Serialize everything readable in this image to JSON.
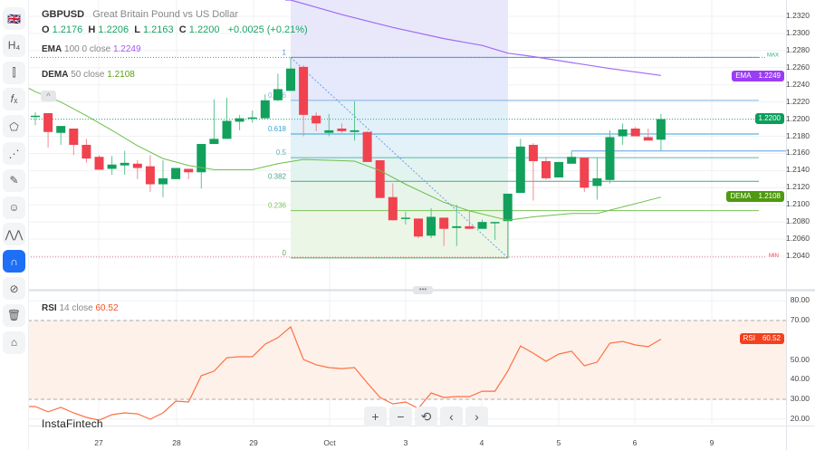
{
  "header": {
    "symbol": "GBPUSD",
    "description": "Great Britain Pound vs US Dollar",
    "ohlc": {
      "o_label": "O",
      "o": "1.2176",
      "h_label": "H",
      "h": "1.2206",
      "l_label": "L",
      "l": "1.2163",
      "c_label": "C",
      "c": "1.2200",
      "change": "+0.0025 (+0.21%)"
    }
  },
  "indicators": {
    "ema": {
      "name": "EMA",
      "params": "100 0 close",
      "value": "1.2249",
      "color": "#a34ff5"
    },
    "dema": {
      "name": "DEMA",
      "params": "50 close",
      "value": "1.2108",
      "color": "#5aa312"
    },
    "rsi": {
      "name": "RSI",
      "params": "14 close",
      "value": "60.52",
      "color": "#f4511e"
    }
  },
  "sidebar": {
    "items": [
      {
        "name": "symbol-flag",
        "glyph": "🇬🇧"
      },
      {
        "name": "timeframe",
        "glyph": "H₄"
      },
      {
        "name": "chart-type",
        "glyph": "⫿"
      },
      {
        "name": "indicators",
        "glyph": "𝑓ₓ"
      },
      {
        "name": "drawing-shapes",
        "glyph": "⬠"
      },
      {
        "name": "fib-tools",
        "glyph": "⋰"
      },
      {
        "name": "brush",
        "glyph": "✎"
      },
      {
        "name": "emoji",
        "glyph": "☺"
      },
      {
        "name": "patterns",
        "glyph": "⋀⋀"
      },
      {
        "name": "magnet",
        "glyph": "∩",
        "active": true
      },
      {
        "name": "hide-drawings",
        "glyph": "⊘"
      },
      {
        "name": "delete-all",
        "glyph": "🗑"
      },
      {
        "name": "screenshot",
        "glyph": "⌂"
      }
    ]
  },
  "price_axis": {
    "ticks": [
      "1.2320",
      "1.2300",
      "1.2280",
      "1.2260",
      "1.2240",
      "1.2220",
      "1.2200",
      "1.2180",
      "1.2160",
      "1.2140",
      "1.2120",
      "1.2100",
      "1.2080",
      "1.2060",
      "1.2040"
    ],
    "tags": {
      "ema_label": "EMA",
      "ema": "1.2249",
      "price": "1.2200",
      "dema_label": "DEMA",
      "dema": "1.2108"
    },
    "colors": {
      "ema": "#9b3df6",
      "price": "#0b9e5a",
      "dema": "#4e9a10"
    }
  },
  "rsi_axis": {
    "ticks": [
      "80.00",
      "70.00",
      "50.00",
      "40.00",
      "30.00",
      "20.00"
    ],
    "tag_label": "RSI",
    "tag": "60.52",
    "color": "#f4401f"
  },
  "time_axis": {
    "labels": [
      "27",
      "28",
      "29",
      "Oct",
      "3",
      "4",
      "5",
      "6",
      "9"
    ]
  },
  "fib": {
    "levels": [
      "1",
      "0.786",
      "0.618",
      "0.5",
      "0.382",
      "0.236",
      "0"
    ],
    "max_label": "MAX",
    "min_label": "MIN",
    "high": 1.2272,
    "low": 1.2038
  },
  "horizontal_line": 1.2163,
  "controls": {
    "zoom_in": "+",
    "zoom_out": "−",
    "reset": "⟲",
    "back": "‹",
    "forward": "›"
  },
  "collapse_glyph": "^",
  "handle_glyph": "•••",
  "logo": "InstaFintech",
  "candles": [
    [
      1.2203,
      1.2208,
      1.2193,
      1.2204
    ],
    [
      1.2207,
      1.2207,
      1.2167,
      1.2185
    ],
    [
      1.2184,
      1.2192,
      1.217,
      1.2192
    ],
    [
      1.2189,
      1.2189,
      1.2158,
      1.217
    ],
    [
      1.217,
      1.2177,
      1.2149,
      1.2154
    ],
    [
      1.2156,
      1.2158,
      1.2141,
      1.2141
    ],
    [
      1.2142,
      1.2157,
      1.2135,
      1.2147
    ],
    [
      1.2146,
      1.2163,
      1.2135,
      1.2149
    ],
    [
      1.2148,
      1.2152,
      1.213,
      1.2143
    ],
    [
      1.2145,
      1.2158,
      1.2115,
      1.2124
    ],
    [
      1.2124,
      1.2152,
      1.2109,
      1.2131
    ],
    [
      1.213,
      1.2143,
      1.213,
      1.2143
    ],
    [
      1.2142,
      1.2142,
      1.213,
      1.2138
    ],
    [
      1.2138,
      1.2171,
      1.2119,
      1.2171
    ],
    [
      1.2171,
      1.2223,
      1.2171,
      1.2177
    ],
    [
      1.2177,
      1.2225,
      1.2177,
      1.2198
    ],
    [
      1.2197,
      1.2205,
      1.2187,
      1.2201
    ],
    [
      1.2201,
      1.221,
      1.2196,
      1.2202
    ],
    [
      1.2201,
      1.2229,
      1.2201,
      1.2222
    ],
    [
      1.2222,
      1.2253,
      1.2221,
      1.2235
    ],
    [
      1.2233,
      1.2272,
      1.2233,
      1.2259
    ],
    [
      1.2261,
      1.2263,
      1.218,
      1.2205
    ],
    [
      1.2204,
      1.2208,
      1.2186,
      1.2195
    ],
    [
      1.2184,
      1.2206,
      1.218,
      1.2187
    ],
    [
      1.2189,
      1.2195,
      1.2184,
      1.2186
    ],
    [
      1.2185,
      1.2221,
      1.2175,
      1.2187
    ],
    [
      1.2185,
      1.2186,
      1.215,
      1.215
    ],
    [
      1.2152,
      1.2152,
      1.2108,
      1.2108
    ],
    [
      1.2109,
      1.2125,
      1.2082,
      1.2082
    ],
    [
      1.2084,
      1.2092,
      1.2077,
      1.2085
    ],
    [
      1.2084,
      1.2084,
      1.2061,
      1.2063
    ],
    [
      1.2064,
      1.2096,
      1.2061,
      1.2086
    ],
    [
      1.2085,
      1.2085,
      1.2052,
      1.2072
    ],
    [
      1.2073,
      1.21,
      1.2052,
      1.2075
    ],
    [
      1.2075,
      1.2093,
      1.2072,
      1.2072
    ],
    [
      1.2072,
      1.2083,
      1.2072,
      1.208
    ],
    [
      1.2079,
      1.208,
      1.2059,
      1.208
    ],
    [
      1.2081,
      1.2113,
      1.2038,
      1.2113
    ],
    [
      1.2114,
      1.2177,
      1.2114,
      1.2168
    ],
    [
      1.217,
      1.2172,
      1.2105,
      1.2151
    ],
    [
      1.2151,
      1.2156,
      1.2129,
      1.2131
    ],
    [
      1.2132,
      1.215,
      1.2132,
      1.215
    ],
    [
      1.2148,
      1.2163,
      1.2148,
      1.2156
    ],
    [
      1.2155,
      1.2155,
      1.2115,
      1.212
    ],
    [
      1.2122,
      1.2155,
      1.2106,
      1.2131
    ],
    [
      1.2129,
      1.2187,
      1.2125,
      1.2179
    ],
    [
      1.218,
      1.2195,
      1.217,
      1.2188
    ],
    [
      1.2189,
      1.2191,
      1.218,
      1.218
    ],
    [
      1.2179,
      1.2189,
      1.2175,
      1.2175
    ],
    [
      1.2176,
      1.2206,
      1.2163,
      1.22
    ]
  ],
  "ema_points": [
    [
      21,
      1.2339
    ],
    [
      25,
      1.2322
    ],
    [
      29,
      1.2307
    ],
    [
      33,
      1.2294
    ],
    [
      36,
      1.2286
    ],
    [
      38,
      1.2277
    ],
    [
      40,
      1.2273
    ],
    [
      43,
      1.2266
    ],
    [
      46,
      1.2259
    ],
    [
      50,
      1.2251
    ]
  ],
  "dema_points": [
    [
      1,
      1.2232
    ],
    [
      3,
      1.222
    ],
    [
      5,
      1.2204
    ],
    [
      7,
      1.2187
    ],
    [
      9,
      1.2169
    ],
    [
      11,
      1.2154
    ],
    [
      13,
      1.2146
    ],
    [
      15,
      1.2141
    ],
    [
      18,
      1.2141
    ],
    [
      20,
      1.2148
    ],
    [
      22,
      1.2153
    ],
    [
      26,
      1.2151
    ],
    [
      28,
      1.214
    ],
    [
      30,
      1.2124
    ],
    [
      33,
      1.2103
    ],
    [
      35,
      1.2093
    ],
    [
      38,
      1.2082
    ],
    [
      40,
      1.2086
    ],
    [
      43,
      1.209
    ],
    [
      45,
      1.209
    ],
    [
      50,
      1.2109
    ]
  ],
  "rsi_values": [
    26.3,
    23.6,
    25.9,
    23.1,
    20.8,
    19.4,
    22.2,
    23.1,
    22.6,
    19.9,
    23.1,
    29.1,
    28.6,
    42.0,
    44.3,
    51.1,
    51.6,
    51.6,
    58.0,
    61.3,
    66.8,
    50.2,
    47.5,
    46.1,
    45.6,
    46.1,
    38.3,
    30.9,
    27.7,
    28.6,
    25.4,
    33.2,
    30.9,
    31.4,
    31.4,
    34.1,
    34.1,
    44.3,
    57.1,
    53.4,
    49.3,
    53.0,
    54.4,
    47.0,
    48.9,
    58.5,
    59.4,
    57.6,
    56.7,
    60.52
  ],
  "colors": {
    "up": "#12a05c",
    "down": "#f0424f",
    "rsi_band": "#fdf1ea"
  }
}
